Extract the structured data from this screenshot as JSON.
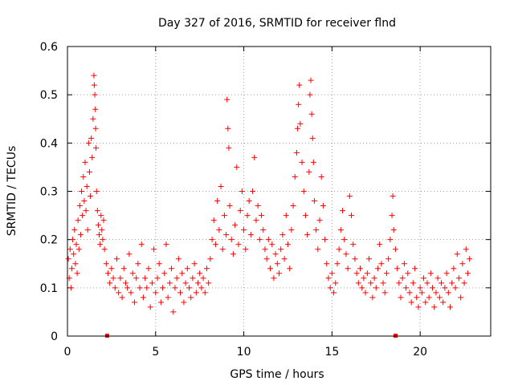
{
  "chart_data": {
    "type": "scatter",
    "title": "Day 327 of 2016, SRMTID for receiver flnd",
    "xlabel": "GPS time / hours",
    "ylabel": "SRMTID / TECUs",
    "xlim": [
      0,
      24
    ],
    "ylim": [
      0,
      0.6
    ],
    "x_ticks": [
      0,
      5,
      10,
      15,
      20
    ],
    "x_tick_labels": [
      "0",
      "5",
      "10",
      "15",
      "20"
    ],
    "y_ticks": [
      0,
      0.1,
      0.2,
      0.3,
      0.4,
      0.5,
      0.6
    ],
    "y_tick_labels": [
      "0",
      "0.1",
      "0.2",
      "0.3",
      "0.4",
      "0.5",
      "0.6"
    ],
    "grid": true,
    "marker": "+",
    "series": [
      {
        "name": "SRMTID",
        "color": "#ff0000",
        "points": [
          [
            0.05,
            0.16
          ],
          [
            0.1,
            0.12
          ],
          [
            0.15,
            0.18
          ],
          [
            0.2,
            0.1
          ],
          [
            0.25,
            0.14
          ],
          [
            0.3,
            0.2
          ],
          [
            0.35,
            0.17
          ],
          [
            0.4,
            0.22
          ],
          [
            0.45,
            0.15
          ],
          [
            0.5,
            0.19
          ],
          [
            0.55,
            0.13
          ],
          [
            0.6,
            0.24
          ],
          [
            0.65,
            0.18
          ],
          [
            0.7,
            0.27
          ],
          [
            0.75,
            0.21
          ],
          [
            0.8,
            0.3
          ],
          [
            0.85,
            0.25
          ],
          [
            0.9,
            0.33
          ],
          [
            0.95,
            0.28
          ],
          [
            1.0,
            0.36
          ],
          [
            1.05,
            0.26
          ],
          [
            1.1,
            0.31
          ],
          [
            1.15,
            0.22
          ],
          [
            1.2,
            0.4
          ],
          [
            1.25,
            0.34
          ],
          [
            1.3,
            0.29
          ],
          [
            1.35,
            0.41
          ],
          [
            1.4,
            0.37
          ],
          [
            1.45,
            0.45
          ],
          [
            1.5,
            0.54
          ],
          [
            1.52,
            0.52
          ],
          [
            1.55,
            0.5
          ],
          [
            1.58,
            0.47
          ],
          [
            1.6,
            0.43
          ],
          [
            1.62,
            0.39
          ],
          [
            1.65,
            0.3
          ],
          [
            1.7,
            0.26
          ],
          [
            1.75,
            0.23
          ],
          [
            1.8,
            0.21
          ],
          [
            1.85,
            0.19
          ],
          [
            1.9,
            0.25
          ],
          [
            1.95,
            0.22
          ],
          [
            2.0,
            0.2
          ],
          [
            2.05,
            0.24
          ],
          [
            2.1,
            0.18
          ],
          [
            2.2,
            0.15
          ],
          [
            2.3,
            0.13
          ],
          [
            2.4,
            0.11
          ],
          [
            2.5,
            0.14
          ],
          [
            2.6,
            0.12
          ],
          [
            2.7,
            0.1
          ],
          [
            2.8,
            0.16
          ],
          [
            2.9,
            0.09
          ],
          [
            3.0,
            0.12
          ],
          [
            3.1,
            0.08
          ],
          [
            3.2,
            0.14
          ],
          [
            3.3,
            0.11
          ],
          [
            3.4,
            0.1
          ],
          [
            3.5,
            0.17
          ],
          [
            3.6,
            0.09
          ],
          [
            3.7,
            0.13
          ],
          [
            3.8,
            0.07
          ],
          [
            3.9,
            0.12
          ],
          [
            4.0,
            0.15
          ],
          [
            4.1,
            0.1
          ],
          [
            4.2,
            0.19
          ],
          [
            4.3,
            0.08
          ],
          [
            4.4,
            0.12
          ],
          [
            4.5,
            0.1
          ],
          [
            4.6,
            0.14
          ],
          [
            4.7,
            0.06
          ],
          [
            4.8,
            0.11
          ],
          [
            4.9,
            0.18
          ],
          [
            5.0,
            0.09
          ],
          [
            5.1,
            0.12
          ],
          [
            5.2,
            0.15
          ],
          [
            5.3,
            0.07
          ],
          [
            5.4,
            0.1
          ],
          [
            5.5,
            0.13
          ],
          [
            5.6,
            0.19
          ],
          [
            5.7,
            0.08
          ],
          [
            5.8,
            0.11
          ],
          [
            5.9,
            0.14
          ],
          [
            6.0,
            0.05
          ],
          [
            6.1,
            0.1
          ],
          [
            6.2,
            0.12
          ],
          [
            6.3,
            0.16
          ],
          [
            6.4,
            0.09
          ],
          [
            6.5,
            0.13
          ],
          [
            6.6,
            0.07
          ],
          [
            6.7,
            0.11
          ],
          [
            6.8,
            0.14
          ],
          [
            6.9,
            0.1
          ],
          [
            7.0,
            0.08
          ],
          [
            7.1,
            0.12
          ],
          [
            7.2,
            0.15
          ],
          [
            7.3,
            0.09
          ],
          [
            7.4,
            0.11
          ],
          [
            7.5,
            0.13
          ],
          [
            7.6,
            0.1
          ],
          [
            7.7,
            0.12
          ],
          [
            7.8,
            0.09
          ],
          [
            7.9,
            0.14
          ],
          [
            8.0,
            0.11
          ],
          [
            8.1,
            0.16
          ],
          [
            8.2,
            0.2
          ],
          [
            8.3,
            0.24
          ],
          [
            8.4,
            0.19
          ],
          [
            8.5,
            0.28
          ],
          [
            8.6,
            0.22
          ],
          [
            8.7,
            0.31
          ],
          [
            8.8,
            0.18
          ],
          [
            8.9,
            0.25
          ],
          [
            9.0,
            0.21
          ],
          [
            9.05,
            0.49
          ],
          [
            9.1,
            0.43
          ],
          [
            9.15,
            0.39
          ],
          [
            9.2,
            0.27
          ],
          [
            9.3,
            0.2
          ],
          [
            9.4,
            0.17
          ],
          [
            9.5,
            0.23
          ],
          [
            9.6,
            0.35
          ],
          [
            9.7,
            0.19
          ],
          [
            9.8,
            0.26
          ],
          [
            9.9,
            0.3
          ],
          [
            10.0,
            0.22
          ],
          [
            10.1,
            0.18
          ],
          [
            10.2,
            0.25
          ],
          [
            10.3,
            0.28
          ],
          [
            10.4,
            0.21
          ],
          [
            10.5,
            0.3
          ],
          [
            10.6,
            0.37
          ],
          [
            10.7,
            0.24
          ],
          [
            10.8,
            0.27
          ],
          [
            10.9,
            0.2
          ],
          [
            11.0,
            0.25
          ],
          [
            11.1,
            0.22
          ],
          [
            11.2,
            0.18
          ],
          [
            11.3,
            0.16
          ],
          [
            11.4,
            0.2
          ],
          [
            11.5,
            0.14
          ],
          [
            11.6,
            0.19
          ],
          [
            11.7,
            0.12
          ],
          [
            11.8,
            0.17
          ],
          [
            11.9,
            0.15
          ],
          [
            12.0,
            0.13
          ],
          [
            12.1,
            0.18
          ],
          [
            12.2,
            0.21
          ],
          [
            12.3,
            0.16
          ],
          [
            12.4,
            0.25
          ],
          [
            12.5,
            0.19
          ],
          [
            12.6,
            0.14
          ],
          [
            12.7,
            0.22
          ],
          [
            12.8,
            0.27
          ],
          [
            12.9,
            0.33
          ],
          [
            13.0,
            0.38
          ],
          [
            13.05,
            0.43
          ],
          [
            13.1,
            0.48
          ],
          [
            13.15,
            0.52
          ],
          [
            13.2,
            0.44
          ],
          [
            13.3,
            0.36
          ],
          [
            13.4,
            0.3
          ],
          [
            13.5,
            0.25
          ],
          [
            13.6,
            0.21
          ],
          [
            13.7,
            0.34
          ],
          [
            13.75,
            0.5
          ],
          [
            13.8,
            0.53
          ],
          [
            13.85,
            0.46
          ],
          [
            13.9,
            0.41
          ],
          [
            13.95,
            0.36
          ],
          [
            14.0,
            0.28
          ],
          [
            14.1,
            0.22
          ],
          [
            14.2,
            0.18
          ],
          [
            14.3,
            0.24
          ],
          [
            14.4,
            0.33
          ],
          [
            14.5,
            0.27
          ],
          [
            14.6,
            0.2
          ],
          [
            14.7,
            0.15
          ],
          [
            14.8,
            0.12
          ],
          [
            14.9,
            0.1
          ],
          [
            15.0,
            0.13
          ],
          [
            15.1,
            0.09
          ],
          [
            15.2,
            0.11
          ],
          [
            15.3,
            0.15
          ],
          [
            15.4,
            0.18
          ],
          [
            15.5,
            0.22
          ],
          [
            15.6,
            0.26
          ],
          [
            15.7,
            0.2
          ],
          [
            15.8,
            0.17
          ],
          [
            15.9,
            0.14
          ],
          [
            16.0,
            0.29
          ],
          [
            16.1,
            0.25
          ],
          [
            16.2,
            0.19
          ],
          [
            16.3,
            0.16
          ],
          [
            16.4,
            0.13
          ],
          [
            16.5,
            0.11
          ],
          [
            16.6,
            0.14
          ],
          [
            16.7,
            0.1
          ],
          [
            16.8,
            0.12
          ],
          [
            16.9,
            0.09
          ],
          [
            17.0,
            0.13
          ],
          [
            17.1,
            0.16
          ],
          [
            17.2,
            0.11
          ],
          [
            17.3,
            0.08
          ],
          [
            17.4,
            0.12
          ],
          [
            17.5,
            0.1
          ],
          [
            17.6,
            0.14
          ],
          [
            17.7,
            0.19
          ],
          [
            17.8,
            0.15
          ],
          [
            17.9,
            0.11
          ],
          [
            18.0,
            0.09
          ],
          [
            18.1,
            0.13
          ],
          [
            18.2,
            0.16
          ],
          [
            18.3,
            0.2
          ],
          [
            18.4,
            0.25
          ],
          [
            18.45,
            0.29
          ],
          [
            18.5,
            0.22
          ],
          [
            18.6,
            0.18
          ],
          [
            18.7,
            0.14
          ],
          [
            18.8,
            0.11
          ],
          [
            18.9,
            0.08
          ],
          [
            19.0,
            0.12
          ],
          [
            19.1,
            0.15
          ],
          [
            19.2,
            0.1
          ],
          [
            19.3,
            0.13
          ],
          [
            19.4,
            0.09
          ],
          [
            19.5,
            0.07
          ],
          [
            19.6,
            0.11
          ],
          [
            19.7,
            0.14
          ],
          [
            19.8,
            0.08
          ],
          [
            19.9,
            0.06
          ],
          [
            20.0,
            0.1
          ],
          [
            20.1,
            0.09
          ],
          [
            20.2,
            0.12
          ],
          [
            20.3,
            0.07
          ],
          [
            20.4,
            0.11
          ],
          [
            20.5,
            0.08
          ],
          [
            20.6,
            0.13
          ],
          [
            20.7,
            0.1
          ],
          [
            20.8,
            0.06
          ],
          [
            20.9,
            0.09
          ],
          [
            21.0,
            0.12
          ],
          [
            21.1,
            0.08
          ],
          [
            21.2,
            0.11
          ],
          [
            21.3,
            0.07
          ],
          [
            21.4,
            0.1
          ],
          [
            21.5,
            0.13
          ],
          [
            21.6,
            0.09
          ],
          [
            21.7,
            0.06
          ],
          [
            21.8,
            0.11
          ],
          [
            21.9,
            0.14
          ],
          [
            22.0,
            0.1
          ],
          [
            22.1,
            0.17
          ],
          [
            22.2,
            0.12
          ],
          [
            22.3,
            0.08
          ],
          [
            22.4,
            0.15
          ],
          [
            22.5,
            0.11
          ],
          [
            22.6,
            0.18
          ],
          [
            22.7,
            0.13
          ],
          [
            22.8,
            0.16
          ]
        ]
      }
    ],
    "x_markers": [
      2.25,
      18.6
    ]
  }
}
